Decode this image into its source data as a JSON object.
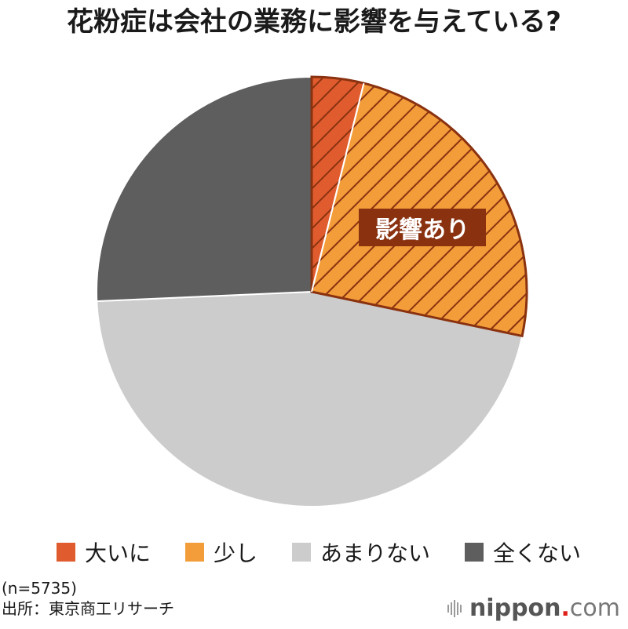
{
  "title": "花粉症は会社の業務に影響を与えている?",
  "badge": "影響あり",
  "legend": [
    {
      "label": "大いに",
      "color": "#e05c2e"
    },
    {
      "label": "少し",
      "color": "#f39c3a"
    },
    {
      "label": "あまりない",
      "color": "#cccccc"
    },
    {
      "label": "全くない",
      "color": "#5e5e5e"
    }
  ],
  "notes": {
    "sample": "(n=5735)",
    "source": "出所：東京商工リサーチ"
  },
  "brand": {
    "name": "nippon",
    "dot": ".",
    "suffix": "com"
  },
  "chart_data": {
    "type": "pie",
    "title": "花粉症は会社の業務に影響を与えている?",
    "categories": [
      "大いに",
      "少し",
      "あまりない",
      "全くない"
    ],
    "values": [
      3.9,
      24.4,
      46.0,
      25.7
    ],
    "colors": [
      "#e05c2e",
      "#f39c3a",
      "#cccccc",
      "#5e5e5e"
    ],
    "annotations": [
      "影響あり (大いに + 少し, hatched)"
    ],
    "sample_size": "n=5735",
    "source": "東京商工リサーチ",
    "legend_position": "bottom"
  }
}
